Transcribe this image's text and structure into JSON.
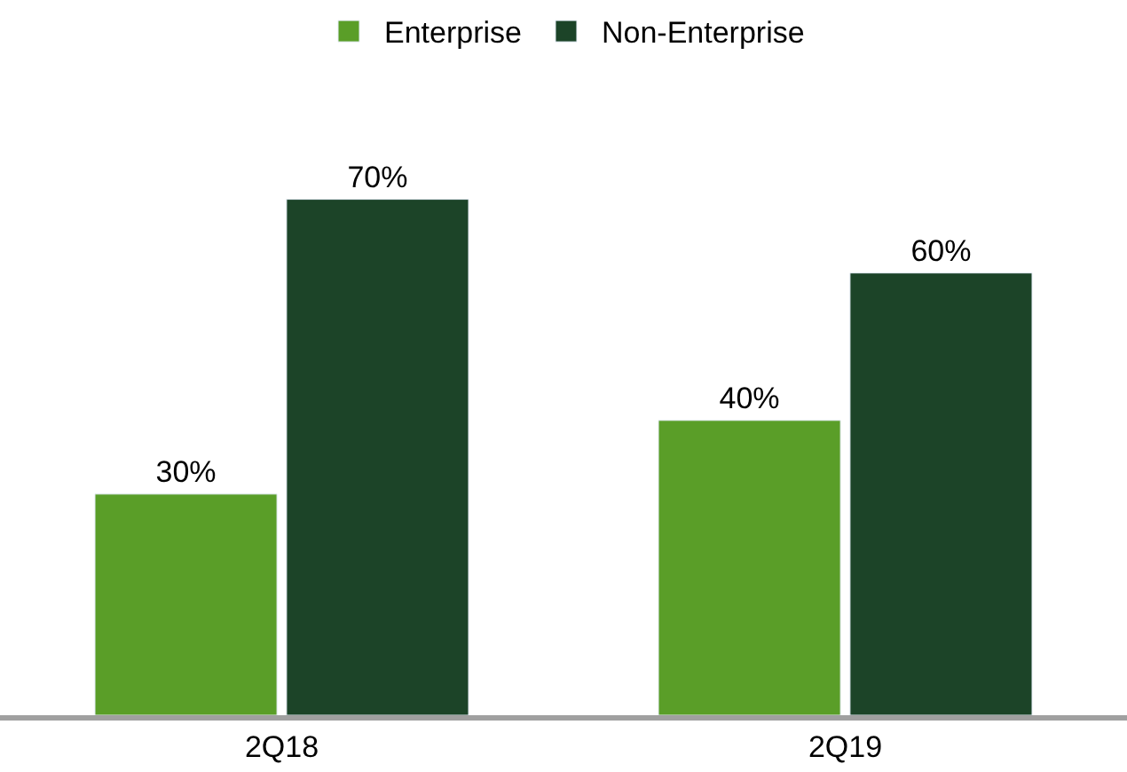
{
  "chart_data": {
    "type": "bar",
    "categories": [
      "2Q18",
      "2Q19"
    ],
    "series": [
      {
        "name": "Enterprise",
        "color": "#5a9e28",
        "values": [
          30,
          40
        ],
        "value_labels": [
          "30%",
          "40%"
        ]
      },
      {
        "name": "Non-Enterprise",
        "color": "#1c4428",
        "values": [
          70,
          60
        ],
        "value_labels": [
          "70%",
          "60%"
        ]
      }
    ],
    "tick_labels": "x",
    "legend": "top"
  }
}
